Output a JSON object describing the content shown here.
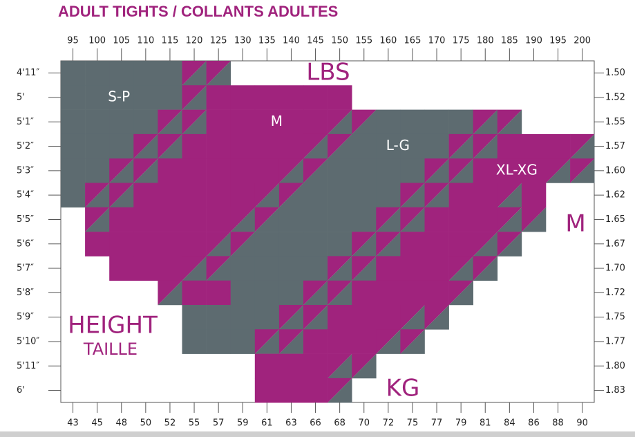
{
  "title": "ADULT TIGHTS / COLLANTS ADULTES",
  "lbs_axis": {
    "label": "LBS",
    "ticks": [
      "95",
      "100",
      "105",
      "110",
      "115",
      "120",
      "125",
      "130",
      "135",
      "140",
      "145",
      "150",
      "155",
      "160",
      "165",
      "170",
      "175",
      "180",
      "185",
      "190",
      "195",
      "200"
    ]
  },
  "kg_axis": {
    "label": "KG",
    "ticks": [
      "43",
      "45",
      "48",
      "50",
      "52",
      "55",
      "57",
      "59",
      "61",
      "63",
      "66",
      "68",
      "70",
      "72",
      "75",
      "77",
      "79",
      "81",
      "84",
      "86",
      "88",
      "90"
    ]
  },
  "height_axis": {
    "label": "HEIGHT",
    "sublabel": "TAILLE",
    "ticks": [
      "4'11″",
      "5'",
      "5'1″",
      "5'2″",
      "5'3″",
      "5'4″",
      "5'5″",
      "5'6″",
      "5'7″",
      "5'8″",
      "5'9″",
      "5'10″",
      "5'11″",
      "6'"
    ]
  },
  "m_axis": {
    "label": "M",
    "ticks": [
      "1.50",
      "1.52",
      "1.55",
      "1.57",
      "1.60",
      "1.62",
      "1.65",
      "1.67",
      "1.70",
      "1.72",
      "1.75",
      "1.77",
      "1.80",
      "1.83"
    ]
  },
  "sizes": [
    {
      "label": "S-P",
      "row": 1,
      "col": 2.4
    },
    {
      "label": "M",
      "row": 2,
      "col": 8.9
    },
    {
      "label": "L-G",
      "row": 3,
      "col": 13.9
    },
    {
      "label": "XL-XG",
      "row": 4,
      "col": 18.8
    }
  ],
  "grid": [
    "GGGGGDD...............",
    "GGGGGDMMMMMM..........",
    "GGGGDDMMMMMDDGGGGDD...",
    "GGGDDMMMMMDDGGGGDDMMMD",
    "GGDDMMMMMDDGGGGDDMMMDD",
    "GDDMMMMMDDGGGGDDMMDM..",
    ".DMMMMMDDGGGGDDMMMDD..",
    ".MMMMMDDGGGGDDMMMDD...",
    "..MMMDDGGGGDDMMMDD....",
    "....DMMGGGDDMMMMD.....",
    ".....GGGGDDMMMDD......",
    ".....GGGDDMMMDD.......",
    "........MMMDD.........",
    "........MMMD.........."
  ]
}
